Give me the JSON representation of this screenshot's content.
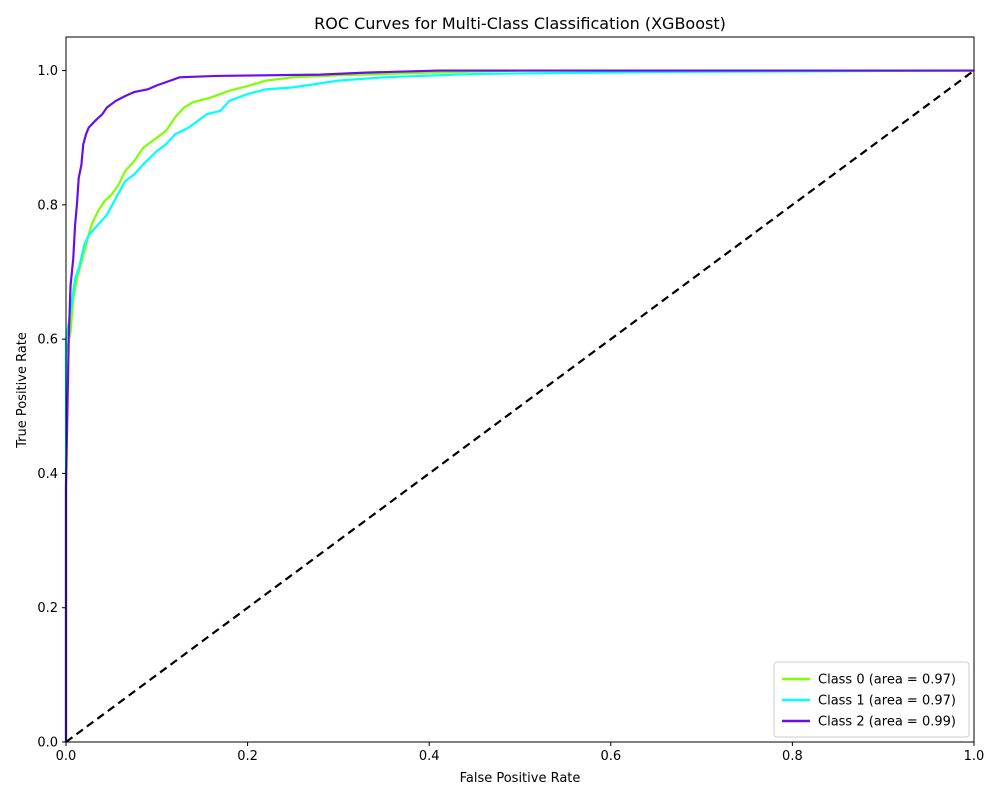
{
  "chart_data": {
    "type": "line",
    "title": "ROC Curves for Multi-Class Classification (XGBoost)",
    "xlabel": "False Positive Rate",
    "ylabel": "True Positive Rate",
    "xlim": [
      0.0,
      1.0
    ],
    "ylim": [
      0.0,
      1.05
    ],
    "xticks": [
      0.0,
      0.2,
      0.4,
      0.6,
      0.8,
      1.0
    ],
    "xtick_labels": [
      "0.0",
      "0.2",
      "0.4",
      "0.6",
      "0.8",
      "1.0"
    ],
    "yticks": [
      0.0,
      0.2,
      0.4,
      0.6,
      0.8,
      1.0
    ],
    "ytick_labels": [
      "0.0",
      "0.2",
      "0.4",
      "0.6",
      "0.8",
      "1.0"
    ],
    "grid": false,
    "legend_position": "lower-right",
    "series": [
      {
        "name": "Class 0 (area = 0.97)",
        "color": "#80ff00",
        "points": [
          [
            0,
            0
          ],
          [
            0,
            0.58
          ],
          [
            0.005,
            0.61
          ],
          [
            0.008,
            0.66
          ],
          [
            0.012,
            0.69
          ],
          [
            0.018,
            0.72
          ],
          [
            0.022,
            0.74
          ],
          [
            0.028,
            0.77
          ],
          [
            0.035,
            0.79
          ],
          [
            0.042,
            0.805
          ],
          [
            0.05,
            0.815
          ],
          [
            0.058,
            0.83
          ],
          [
            0.065,
            0.85
          ],
          [
            0.075,
            0.865
          ],
          [
            0.085,
            0.885
          ],
          [
            0.1,
            0.9
          ],
          [
            0.11,
            0.91
          ],
          [
            0.12,
            0.93
          ],
          [
            0.13,
            0.945
          ],
          [
            0.14,
            0.953
          ],
          [
            0.16,
            0.96
          ],
          [
            0.18,
            0.97
          ],
          [
            0.2,
            0.977
          ],
          [
            0.22,
            0.985
          ],
          [
            0.25,
            0.99
          ],
          [
            0.3,
            0.993
          ],
          [
            0.4,
            0.997
          ],
          [
            0.5,
            1.0
          ],
          [
            1.0,
            1.0
          ]
        ]
      },
      {
        "name": "Class 1 (area = 0.97)",
        "color": "#00ffff",
        "points": [
          [
            0,
            0
          ],
          [
            0,
            0.6
          ],
          [
            0.005,
            0.64
          ],
          [
            0.01,
            0.69
          ],
          [
            0.015,
            0.71
          ],
          [
            0.02,
            0.74
          ],
          [
            0.025,
            0.755
          ],
          [
            0.035,
            0.77
          ],
          [
            0.045,
            0.785
          ],
          [
            0.055,
            0.81
          ],
          [
            0.065,
            0.835
          ],
          [
            0.075,
            0.845
          ],
          [
            0.085,
            0.86
          ],
          [
            0.1,
            0.88
          ],
          [
            0.11,
            0.89
          ],
          [
            0.12,
            0.905
          ],
          [
            0.135,
            0.915
          ],
          [
            0.145,
            0.925
          ],
          [
            0.155,
            0.935
          ],
          [
            0.17,
            0.94
          ],
          [
            0.18,
            0.955
          ],
          [
            0.2,
            0.965
          ],
          [
            0.22,
            0.972
          ],
          [
            0.25,
            0.975
          ],
          [
            0.3,
            0.985
          ],
          [
            0.35,
            0.99
          ],
          [
            0.45,
            0.995
          ],
          [
            0.66,
            0.998
          ],
          [
            1.0,
            1.0
          ]
        ]
      },
      {
        "name": "Class 2 (area = 0.99)",
        "color": "#6a0ee8",
        "points": [
          [
            0,
            0
          ],
          [
            0,
            0.38
          ],
          [
            0.003,
            0.6
          ],
          [
            0.005,
            0.68
          ],
          [
            0.008,
            0.72
          ],
          [
            0.01,
            0.77
          ],
          [
            0.012,
            0.8
          ],
          [
            0.014,
            0.84
          ],
          [
            0.017,
            0.86
          ],
          [
            0.019,
            0.89
          ],
          [
            0.022,
            0.905
          ],
          [
            0.025,
            0.915
          ],
          [
            0.032,
            0.925
          ],
          [
            0.04,
            0.935
          ],
          [
            0.045,
            0.945
          ],
          [
            0.055,
            0.955
          ],
          [
            0.065,
            0.962
          ],
          [
            0.075,
            0.968
          ],
          [
            0.09,
            0.972
          ],
          [
            0.1,
            0.978
          ],
          [
            0.115,
            0.985
          ],
          [
            0.125,
            0.99
          ],
          [
            0.165,
            0.992
          ],
          [
            0.28,
            0.994
          ],
          [
            0.33,
            0.997
          ],
          [
            0.41,
            1.0
          ],
          [
            1.0,
            1.0
          ]
        ]
      },
      {
        "name": "",
        "color": "#000000",
        "dashed": true,
        "points": [
          [
            0,
            0
          ],
          [
            1,
            1
          ]
        ]
      }
    ]
  }
}
